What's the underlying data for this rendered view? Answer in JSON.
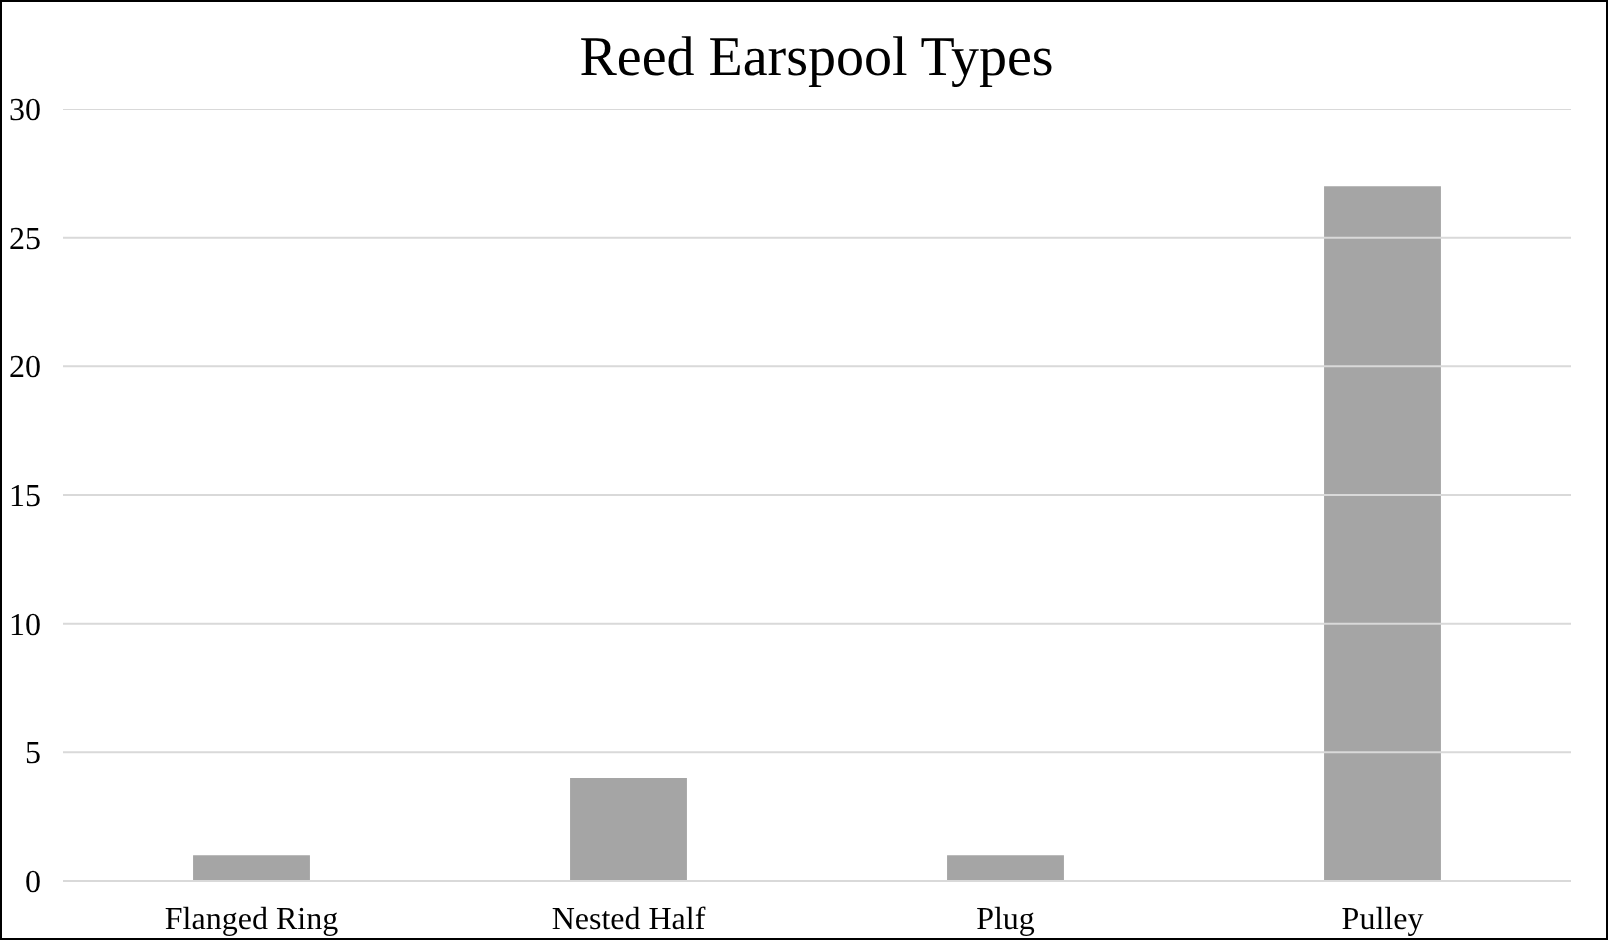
{
  "chart_data": {
    "type": "bar",
    "title": "Reed Earspool Types",
    "categories": [
      "Flanged Ring",
      "Nested Half",
      "Plug",
      "Pulley"
    ],
    "values": [
      1,
      4,
      1,
      27
    ],
    "color": "#a5a5a5",
    "ylim": [
      0,
      30
    ],
    "yticks": [
      0,
      5,
      10,
      15,
      20,
      25,
      30
    ],
    "grid": "y"
  }
}
